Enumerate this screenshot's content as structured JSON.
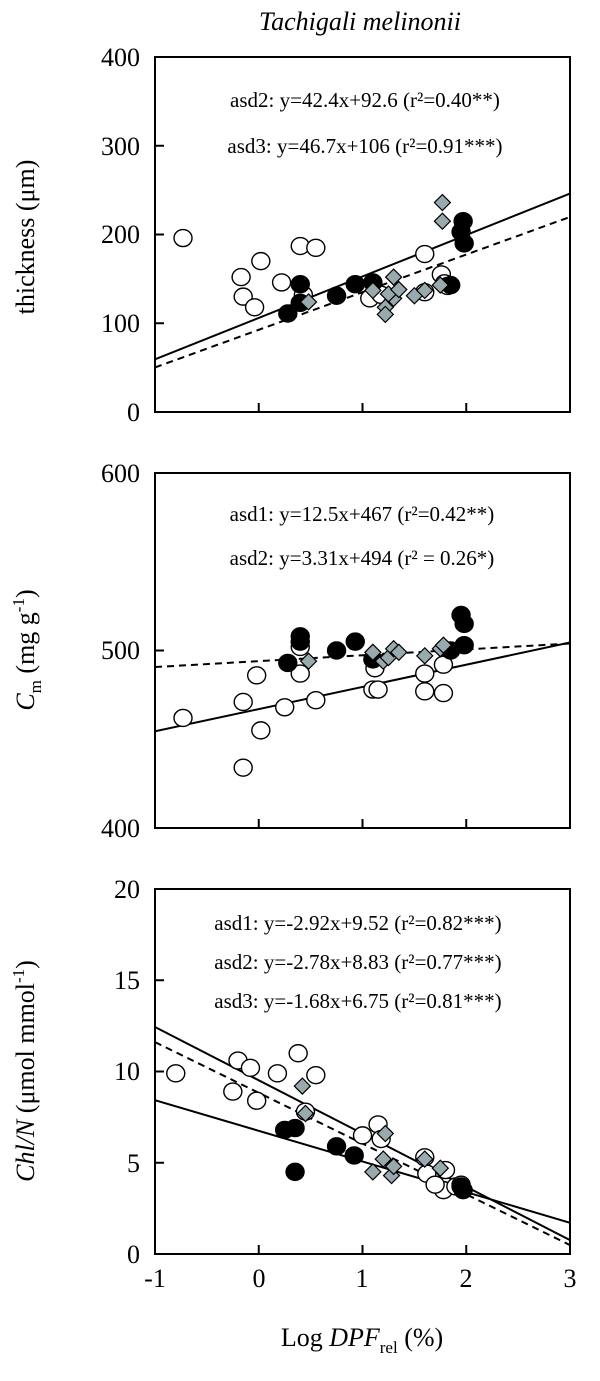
{
  "title": "Tachigali melinonii",
  "x_axis": {
    "label_prefix": "Log ",
    "label_main": "DPF",
    "label_sub": "rel",
    "label_suffix": " (%)",
    "range": [
      -1,
      3
    ],
    "ticks": [
      "-1",
      "0",
      "1",
      "2",
      "3"
    ]
  },
  "colors": {
    "open": "#ffffff",
    "black": "#000000",
    "gray": "#99aaaf",
    "stroke": "#000000"
  },
  "chart_data": [
    {
      "type": "scatter",
      "id": "thickness",
      "ylabel": "thickness (μm)",
      "ylim": [
        0,
        400
      ],
      "yticks": [
        "0",
        "100",
        "200",
        "300",
        "400"
      ],
      "equations": [
        "asd2: y=42.4x+92.6 (r²=0.40**)",
        "asd3: y=46.7x+106 (r²=0.91***)"
      ],
      "series": [
        {
          "name": "asd1",
          "marker": "circle",
          "fill": "open",
          "points": [
            [
              -0.73,
              196
            ],
            [
              -0.17,
              152
            ],
            [
              -0.15,
              130
            ],
            [
              0.02,
              170
            ],
            [
              -0.04,
              118
            ],
            [
              0.22,
              146
            ],
            [
              0.4,
              187
            ],
            [
              0.55,
              185
            ],
            [
              1.07,
              128
            ],
            [
              1.18,
              132
            ],
            [
              1.6,
              178
            ],
            [
              1.6,
              135
            ],
            [
              1.76,
              155
            ],
            [
              1.79,
              145
            ],
            [
              1.82,
              142
            ],
            [
              0.43,
              132
            ]
          ]
        },
        {
          "name": "asd2",
          "marker": "circle",
          "fill": "black",
          "points": [
            [
              0.28,
              111
            ],
            [
              0.4,
              123
            ],
            [
              0.4,
              144
            ],
            [
              0.75,
              131
            ],
            [
              0.93,
              144
            ],
            [
              1.1,
              146
            ],
            [
              1.95,
              203
            ],
            [
              1.98,
              190
            ],
            [
              1.97,
              215
            ],
            [
              1.85,
              143
            ]
          ]
        },
        {
          "name": "asd3",
          "marker": "diamond",
          "fill": "gray",
          "points": [
            [
              0.48,
              124
            ],
            [
              1.1,
              137
            ],
            [
              1.22,
              118
            ],
            [
              1.22,
              110
            ],
            [
              1.3,
              152
            ],
            [
              1.3,
              128
            ],
            [
              1.5,
              131
            ],
            [
              1.77,
              236
            ],
            [
              1.77,
              215
            ],
            [
              1.6,
              137
            ],
            [
              1.75,
              143
            ],
            [
              1.25,
              133
            ],
            [
              1.35,
              138
            ]
          ]
        }
      ],
      "lines": [
        {
          "style": "solid",
          "slope": 46.7,
          "intercept": 106
        },
        {
          "style": "dashed",
          "slope": 42.4,
          "intercept": 92.6
        }
      ]
    },
    {
      "type": "scatter",
      "id": "cm",
      "ylabel_main": "C",
      "ylabel_sub": "m",
      "ylabel_rest": " (mg g",
      "ylabel_sup": "-1",
      "ylabel_end": ")",
      "ylim": [
        400,
        600
      ],
      "yticks": [
        "400",
        "500",
        "600"
      ],
      "equations": [
        "asd1: y=12.5x+467 (r²=0.42**)",
        "asd2: y=3.31x+494 (r² = 0.26*)"
      ],
      "series": [
        {
          "name": "asd1",
          "marker": "circle",
          "fill": "open",
          "points": [
            [
              -0.73,
              462
            ],
            [
              -0.15,
              471
            ],
            [
              -0.02,
              486
            ],
            [
              -0.15,
              434
            ],
            [
              0.02,
              455
            ],
            [
              0.25,
              468
            ],
            [
              0.55,
              472
            ],
            [
              0.4,
              487
            ],
            [
              0.4,
              502
            ],
            [
              1.1,
              478
            ],
            [
              1.15,
              478
            ],
            [
              1.12,
              490
            ],
            [
              1.6,
              487
            ],
            [
              1.6,
              477
            ],
            [
              1.78,
              476
            ],
            [
              1.78,
              492
            ]
          ]
        },
        {
          "name": "asd2",
          "marker": "circle",
          "fill": "black",
          "points": [
            [
              0.28,
              493
            ],
            [
              0.4,
              508
            ],
            [
              0.4,
              505
            ],
            [
              0.75,
              500
            ],
            [
              0.93,
              505
            ],
            [
              1.1,
              495
            ],
            [
              1.95,
              520
            ],
            [
              1.98,
              515
            ],
            [
              1.98,
              503
            ],
            [
              1.85,
              500
            ]
          ]
        },
        {
          "name": "asd3",
          "marker": "diamond",
          "fill": "gray",
          "points": [
            [
              0.48,
              494
            ],
            [
              1.1,
              499
            ],
            [
              1.2,
              494
            ],
            [
              1.25,
              496
            ],
            [
              1.3,
              501
            ],
            [
              1.35,
              499
            ],
            [
              1.6,
              497
            ],
            [
              1.75,
              501
            ],
            [
              1.78,
              503
            ]
          ]
        }
      ],
      "lines": [
        {
          "style": "solid",
          "slope": 12.5,
          "intercept": 467
        },
        {
          "style": "dashed",
          "slope": 3.31,
          "intercept": 494
        }
      ]
    },
    {
      "type": "scatter",
      "id": "chln",
      "ylabel_main": "Chl/N",
      "ylabel_rest": " (μmol mmol",
      "ylabel_sup": "-1",
      "ylabel_end": ")",
      "ylim": [
        0,
        20
      ],
      "yticks": [
        "0",
        "5",
        "10",
        "15",
        "20"
      ],
      "equations": [
        "asd1: y=-2.92x+9.52 (r²=0.82***)",
        "asd2: y=-2.78x+8.83 (r²=0.77***)",
        "asd3: y=-1.68x+6.75 (r²=0.81***)"
      ],
      "series": [
        {
          "name": "asd1",
          "marker": "circle",
          "fill": "open",
          "points": [
            [
              -0.8,
              9.9
            ],
            [
              -0.2,
              10.6
            ],
            [
              -0.25,
              8.9
            ],
            [
              -0.08,
              10.2
            ],
            [
              -0.02,
              8.4
            ],
            [
              0.18,
              9.9
            ],
            [
              0.38,
              11.0
            ],
            [
              0.55,
              9.8
            ],
            [
              0.45,
              7.8
            ],
            [
              1.0,
              6.5
            ],
            [
              1.15,
              7.1
            ],
            [
              1.18,
              6.3
            ],
            [
              1.6,
              5.3
            ],
            [
              1.62,
              4.4
            ],
            [
              1.8,
              4.6
            ],
            [
              1.78,
              3.5
            ],
            [
              1.9,
              3.7
            ],
            [
              1.95,
              3.8
            ],
            [
              1.7,
              3.8
            ]
          ]
        },
        {
          "name": "asd2",
          "marker": "circle",
          "fill": "black",
          "points": [
            [
              0.25,
              6.8
            ],
            [
              0.35,
              6.9
            ],
            [
              0.35,
              4.5
            ],
            [
              0.75,
              5.9
            ],
            [
              0.92,
              5.4
            ],
            [
              1.95,
              3.7
            ],
            [
              1.97,
              3.5
            ]
          ]
        },
        {
          "name": "asd3",
          "marker": "diamond",
          "fill": "gray",
          "points": [
            [
              0.42,
              9.2
            ],
            [
              0.45,
              7.7
            ],
            [
              1.1,
              4.5
            ],
            [
              1.2,
              5.2
            ],
            [
              1.22,
              6.6
            ],
            [
              1.28,
              4.3
            ],
            [
              1.6,
              5.2
            ],
            [
              1.75,
              4.7
            ],
            [
              1.3,
              4.8
            ]
          ]
        }
      ],
      "lines": [
        {
          "style": "solid",
          "slope": -2.92,
          "intercept": 9.52
        },
        {
          "style": "dashed",
          "slope": -2.78,
          "intercept": 8.83
        },
        {
          "style": "solid",
          "slope": -1.68,
          "intercept": 6.75
        }
      ]
    }
  ]
}
